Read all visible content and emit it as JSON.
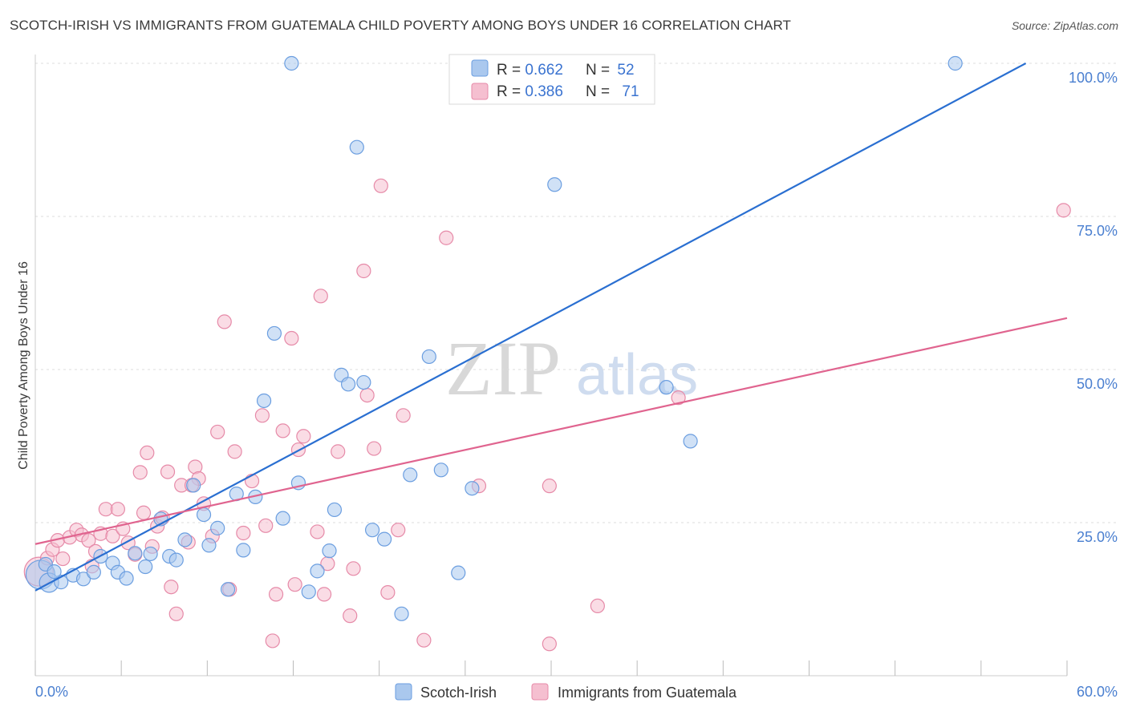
{
  "title": "SCOTCH-IRISH VS IMMIGRANTS FROM GUATEMALA CHILD POVERTY AMONG BOYS UNDER 16 CORRELATION CHART",
  "source": "Source: ZipAtlas.com",
  "watermark": {
    "zip": "ZIP",
    "atlas": "atlas"
  },
  "colors": {
    "blue_fill": "#aac8ee",
    "blue_stroke": "#6b9ee0",
    "blue_line": "#2a6fd1",
    "pink_fill": "#f5bfd0",
    "pink_stroke": "#e68aa8",
    "pink_line": "#e0648f",
    "grid": "#dddddd",
    "tick_text": "#4a7fd0"
  },
  "legend": {
    "rows": [
      {
        "r_label": "R = ",
        "r_value": "0.662",
        "n_label": "N = ",
        "n_value": "52"
      },
      {
        "r_label": "R = ",
        "r_value": "0.386",
        "n_label": "N = ",
        "n_value": "71"
      }
    ]
  },
  "bottom_legend": [
    "Scotch-Irish",
    "Immigrants from Guatemala"
  ],
  "chart_data": {
    "type": "scatter",
    "title": "SCOTCH-IRISH VS IMMIGRANTS FROM GUATEMALA CHILD POVERTY AMONG BOYS UNDER 16 CORRELATION CHART",
    "xlabel": "",
    "ylabel": "Child Poverty Among Boys Under 16",
    "xlim": [
      0,
      60
    ],
    "ylim": [
      0,
      100
    ],
    "x_tick_labels": [
      "0.0%",
      "60.0%"
    ],
    "y_ticks": [
      25,
      50,
      75,
      100
    ],
    "y_tick_labels": [
      "25.0%",
      "50.0%",
      "75.0%",
      "100.0%"
    ],
    "series": [
      {
        "name": "Scotch-Irish",
        "r": 0.662,
        "n": 52,
        "trend": {
          "x": [
            0,
            57.6
          ],
          "y": [
            13.9,
            100
          ]
        },
        "points": [
          {
            "x": 0.3,
            "y": 16.5,
            "s": 3
          },
          {
            "x": 0.8,
            "y": 15.2,
            "s": 2
          },
          {
            "x": 1.5,
            "y": 15.3,
            "s": 1
          },
          {
            "x": 2.2,
            "y": 16.4,
            "s": 1
          },
          {
            "x": 2.8,
            "y": 15.8,
            "s": 1
          },
          {
            "x": 3.4,
            "y": 16.9,
            "s": 1
          },
          {
            "x": 3.8,
            "y": 19.5,
            "s": 1
          },
          {
            "x": 4.5,
            "y": 18.4,
            "s": 1
          },
          {
            "x": 4.8,
            "y": 16.9,
            "s": 1
          },
          {
            "x": 5.3,
            "y": 15.9,
            "s": 1
          },
          {
            "x": 5.8,
            "y": 20.0,
            "s": 1
          },
          {
            "x": 6.4,
            "y": 17.8,
            "s": 1
          },
          {
            "x": 6.7,
            "y": 19.9,
            "s": 1
          },
          {
            "x": 7.3,
            "y": 25.6,
            "s": 1
          },
          {
            "x": 7.8,
            "y": 19.5,
            "s": 1
          },
          {
            "x": 8.2,
            "y": 18.9,
            "s": 1
          },
          {
            "x": 8.7,
            "y": 22.2,
            "s": 1
          },
          {
            "x": 9.2,
            "y": 31.1,
            "s": 1
          },
          {
            "x": 9.8,
            "y": 26.3,
            "s": 1
          },
          {
            "x": 10.1,
            "y": 21.3,
            "s": 1
          },
          {
            "x": 10.6,
            "y": 24.1,
            "s": 1
          },
          {
            "x": 11.2,
            "y": 14.1,
            "s": 1
          },
          {
            "x": 11.7,
            "y": 29.7,
            "s": 1
          },
          {
            "x": 12.1,
            "y": 20.5,
            "s": 1
          },
          {
            "x": 12.8,
            "y": 29.2,
            "s": 1
          },
          {
            "x": 13.3,
            "y": 44.9,
            "s": 1
          },
          {
            "x": 13.9,
            "y": 55.9,
            "s": 1
          },
          {
            "x": 14.4,
            "y": 25.7,
            "s": 1
          },
          {
            "x": 14.9,
            "y": 100.0,
            "s": 1
          },
          {
            "x": 15.3,
            "y": 31.5,
            "s": 1
          },
          {
            "x": 15.9,
            "y": 13.7,
            "s": 1
          },
          {
            "x": 16.4,
            "y": 17.1,
            "s": 1
          },
          {
            "x": 17.1,
            "y": 20.4,
            "s": 1
          },
          {
            "x": 17.4,
            "y": 27.1,
            "s": 1
          },
          {
            "x": 17.8,
            "y": 49.1,
            "s": 1
          },
          {
            "x": 18.2,
            "y": 47.6,
            "s": 1
          },
          {
            "x": 18.7,
            "y": 86.3,
            "s": 1
          },
          {
            "x": 19.1,
            "y": 47.9,
            "s": 1
          },
          {
            "x": 19.6,
            "y": 23.8,
            "s": 1
          },
          {
            "x": 20.3,
            "y": 22.3,
            "s": 1
          },
          {
            "x": 21.3,
            "y": 10.1,
            "s": 1
          },
          {
            "x": 21.8,
            "y": 32.8,
            "s": 1
          },
          {
            "x": 22.9,
            "y": 52.1,
            "s": 1
          },
          {
            "x": 23.6,
            "y": 33.6,
            "s": 1
          },
          {
            "x": 24.6,
            "y": 16.8,
            "s": 1
          },
          {
            "x": 25.4,
            "y": 30.6,
            "s": 1
          },
          {
            "x": 30.2,
            "y": 80.2,
            "s": 1
          },
          {
            "x": 36.7,
            "y": 47.1,
            "s": 1
          },
          {
            "x": 38.1,
            "y": 38.3,
            "s": 1
          },
          {
            "x": 53.5,
            "y": 100.0,
            "s": 1
          },
          {
            "x": 0.6,
            "y": 18.2,
            "s": 1
          },
          {
            "x": 1.1,
            "y": 17.0,
            "s": 1
          }
        ]
      },
      {
        "name": "Immigrants from Guatemala",
        "r": 0.386,
        "n": 71,
        "trend": {
          "x": [
            0,
            60
          ],
          "y": [
            21.5,
            58.4
          ]
        },
        "points": [
          {
            "x": 0.2,
            "y": 17.0,
            "s": 3
          },
          {
            "x": 0.7,
            "y": 19.2,
            "s": 1
          },
          {
            "x": 1.0,
            "y": 20.6,
            "s": 1
          },
          {
            "x": 1.3,
            "y": 22.1,
            "s": 1
          },
          {
            "x": 1.6,
            "y": 19.1,
            "s": 1
          },
          {
            "x": 2.0,
            "y": 22.6,
            "s": 1
          },
          {
            "x": 2.4,
            "y": 23.8,
            "s": 1
          },
          {
            "x": 2.7,
            "y": 23.0,
            "s": 1
          },
          {
            "x": 3.1,
            "y": 22.1,
            "s": 1
          },
          {
            "x": 3.5,
            "y": 20.3,
            "s": 1
          },
          {
            "x": 3.8,
            "y": 23.2,
            "s": 1
          },
          {
            "x": 4.1,
            "y": 27.2,
            "s": 1
          },
          {
            "x": 4.5,
            "y": 22.8,
            "s": 1
          },
          {
            "x": 4.8,
            "y": 27.2,
            "s": 1
          },
          {
            "x": 5.1,
            "y": 24.0,
            "s": 1
          },
          {
            "x": 5.4,
            "y": 21.7,
            "s": 1
          },
          {
            "x": 5.8,
            "y": 19.8,
            "s": 1
          },
          {
            "x": 6.1,
            "y": 33.2,
            "s": 1
          },
          {
            "x": 6.3,
            "y": 26.6,
            "s": 1
          },
          {
            "x": 6.5,
            "y": 36.4,
            "s": 1
          },
          {
            "x": 6.8,
            "y": 21.1,
            "s": 1
          },
          {
            "x": 7.1,
            "y": 24.4,
            "s": 1
          },
          {
            "x": 7.4,
            "y": 25.8,
            "s": 1
          },
          {
            "x": 7.7,
            "y": 33.3,
            "s": 1
          },
          {
            "x": 7.9,
            "y": 14.5,
            "s": 1
          },
          {
            "x": 8.2,
            "y": 10.1,
            "s": 1
          },
          {
            "x": 8.5,
            "y": 31.1,
            "s": 1
          },
          {
            "x": 8.9,
            "y": 21.8,
            "s": 1
          },
          {
            "x": 9.3,
            "y": 34.1,
            "s": 1
          },
          {
            "x": 9.5,
            "y": 32.2,
            "s": 1
          },
          {
            "x": 9.8,
            "y": 28.1,
            "s": 1
          },
          {
            "x": 10.3,
            "y": 22.8,
            "s": 1
          },
          {
            "x": 10.6,
            "y": 39.8,
            "s": 1
          },
          {
            "x": 11.0,
            "y": 57.8,
            "s": 1
          },
          {
            "x": 11.3,
            "y": 14.1,
            "s": 1
          },
          {
            "x": 11.6,
            "y": 36.6,
            "s": 1
          },
          {
            "x": 12.1,
            "y": 23.3,
            "s": 1
          },
          {
            "x": 12.6,
            "y": 31.8,
            "s": 1
          },
          {
            "x": 13.2,
            "y": 42.5,
            "s": 1
          },
          {
            "x": 13.4,
            "y": 24.5,
            "s": 1
          },
          {
            "x": 13.8,
            "y": 5.7,
            "s": 1
          },
          {
            "x": 14.0,
            "y": 13.3,
            "s": 1
          },
          {
            "x": 14.4,
            "y": 40.0,
            "s": 1
          },
          {
            "x": 14.9,
            "y": 55.1,
            "s": 1
          },
          {
            "x": 15.1,
            "y": 14.9,
            "s": 1
          },
          {
            "x": 15.3,
            "y": 36.9,
            "s": 1
          },
          {
            "x": 15.6,
            "y": 39.1,
            "s": 1
          },
          {
            "x": 16.4,
            "y": 23.5,
            "s": 1
          },
          {
            "x": 16.6,
            "y": 62.0,
            "s": 1
          },
          {
            "x": 16.8,
            "y": 13.3,
            "s": 1
          },
          {
            "x": 17.0,
            "y": 18.3,
            "s": 1
          },
          {
            "x": 17.6,
            "y": 36.6,
            "s": 1
          },
          {
            "x": 18.3,
            "y": 9.8,
            "s": 1
          },
          {
            "x": 19.1,
            "y": 66.1,
            "s": 1
          },
          {
            "x": 19.3,
            "y": 45.8,
            "s": 1
          },
          {
            "x": 19.7,
            "y": 37.1,
            "s": 1
          },
          {
            "x": 20.1,
            "y": 80.0,
            "s": 1
          },
          {
            "x": 20.5,
            "y": 13.6,
            "s": 1
          },
          {
            "x": 21.1,
            "y": 23.8,
            "s": 1
          },
          {
            "x": 21.4,
            "y": 42.5,
            "s": 1
          },
          {
            "x": 22.6,
            "y": 5.8,
            "s": 1
          },
          {
            "x": 23.9,
            "y": 71.5,
            "s": 1
          },
          {
            "x": 25.8,
            "y": 31.0,
            "s": 1
          },
          {
            "x": 29.9,
            "y": 5.2,
            "s": 1
          },
          {
            "x": 29.9,
            "y": 31.0,
            "s": 1
          },
          {
            "x": 32.7,
            "y": 11.4,
            "s": 1
          },
          {
            "x": 37.4,
            "y": 45.4,
            "s": 1
          },
          {
            "x": 59.8,
            "y": 76.0,
            "s": 1
          },
          {
            "x": 9.1,
            "y": 31.1,
            "s": 1
          },
          {
            "x": 3.3,
            "y": 17.9,
            "s": 1
          },
          {
            "x": 18.5,
            "y": 17.5,
            "s": 1
          }
        ]
      }
    ]
  }
}
